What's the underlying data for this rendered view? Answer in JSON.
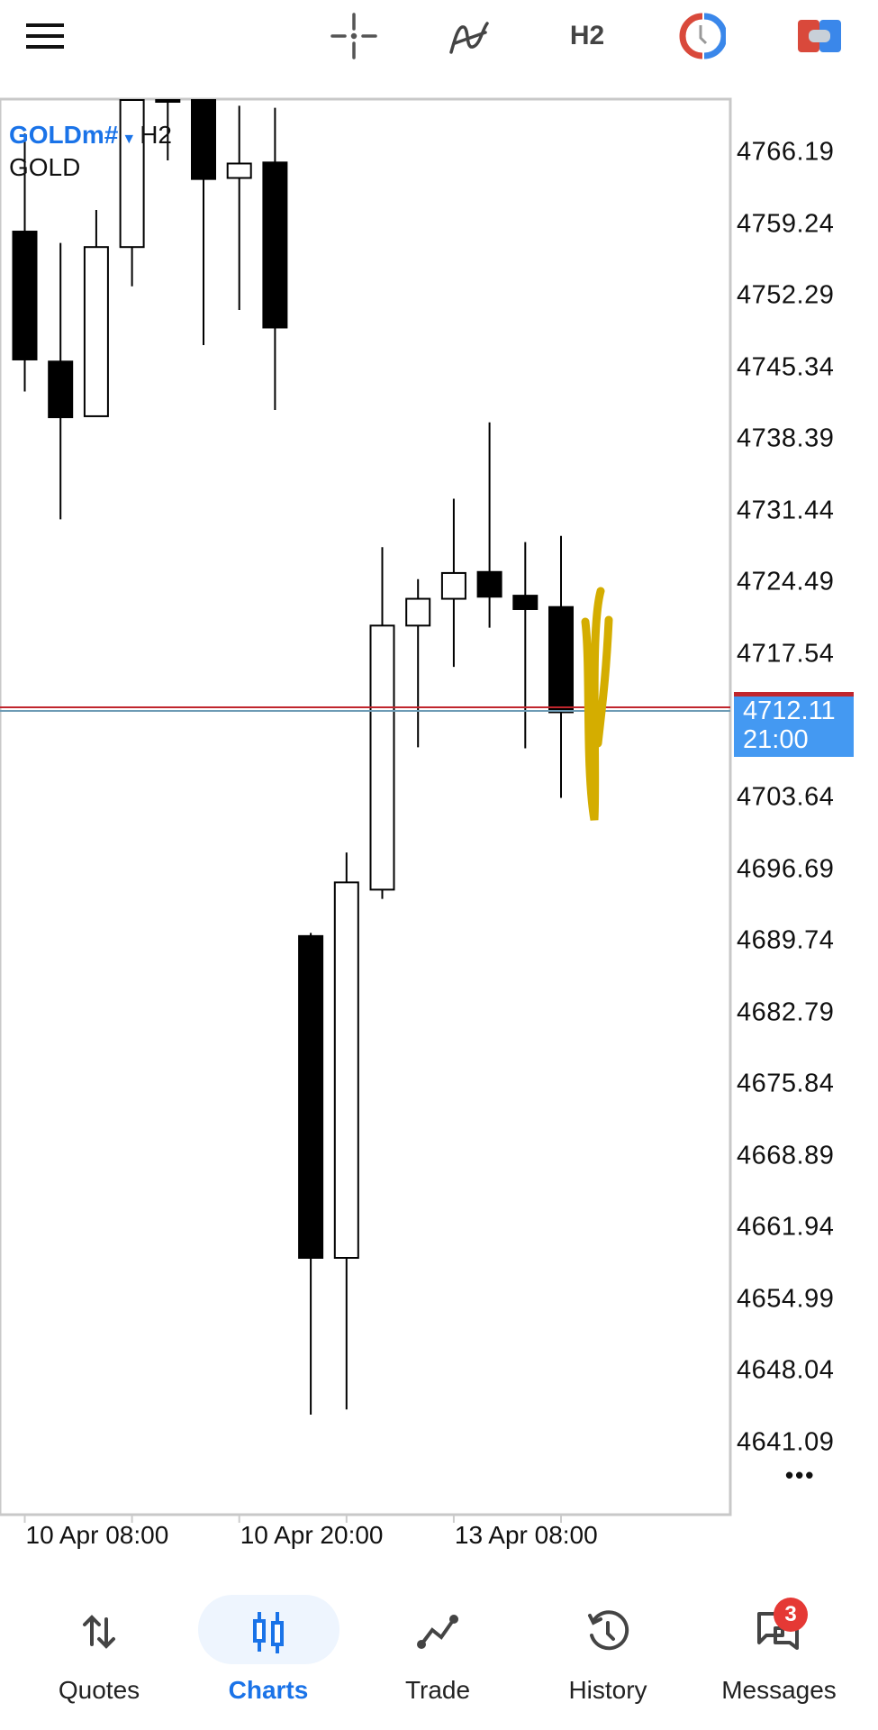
{
  "toolbar": {
    "icons": [
      "menu-icon",
      "crosshair-icon",
      "indicators-icon",
      "clock-icon",
      "one-click-trading-icon"
    ],
    "timeframe": "H2"
  },
  "legend": {
    "symbol": "GOLDm#",
    "timeframe": "H2",
    "description": "GOLD"
  },
  "colors": {
    "accent": "#1a73e8",
    "price_label_bg": "#4499f2",
    "ask_line": "#c0262d",
    "bid_line": "#6d9bb5",
    "annotation": "#d4ad00",
    "badge": "#e53935"
  },
  "chart_data": {
    "type": "candlestick",
    "symbol": "GOLDm#",
    "timeframe": "H2",
    "y_ticks": [
      "4766.19",
      "4759.24",
      "4752.29",
      "4745.34",
      "4738.39",
      "4731.44",
      "4724.49",
      "4717.54",
      "4703.64",
      "4696.69",
      "4689.74",
      "4682.79",
      "4675.84",
      "4668.89",
      "4661.94",
      "4654.99",
      "4648.04",
      "4641.09"
    ],
    "x_ticks": [
      {
        "label": "10 Apr 08:00",
        "candle": 0
      },
      {
        "label": "10 Apr 20:00",
        "candle": 6
      },
      {
        "label": "13 Apr 08:00",
        "candle": 12
      }
    ],
    "candles": [
      {
        "o": 4758.5,
        "h": 4768.0,
        "l": 4743.0,
        "c": 4746.1
      },
      {
        "o": 4745.9,
        "h": 4757.4,
        "l": 4730.6,
        "c": 4740.5
      },
      {
        "o": 4740.6,
        "h": 4760.6,
        "l": 4740.6,
        "c": 4757.0
      },
      {
        "o": 4757.0,
        "h": 4775.0,
        "l": 4753.2,
        "c": 4772.0
      },
      {
        "o": 4778.0,
        "h": 4780.0,
        "l": 4765.4,
        "c": 4774.0
      },
      {
        "o": 4775.0,
        "h": 4776.0,
        "l": 4747.5,
        "c": 4763.6
      },
      {
        "o": 4763.7,
        "h": 4770.7,
        "l": 4750.9,
        "c": 4765.1
      },
      {
        "o": 4765.2,
        "h": 4770.5,
        "l": 4741.2,
        "c": 4749.2
      },
      {
        "o": 4690.2,
        "h": 4690.5,
        "l": 4643.8,
        "c": 4659.0
      },
      {
        "o": 4659.0,
        "h": 4698.3,
        "l": 4644.3,
        "c": 4695.4
      },
      {
        "o": 4694.7,
        "h": 4727.9,
        "l": 4693.8,
        "c": 4720.3
      },
      {
        "o": 4720.3,
        "h": 4724.8,
        "l": 4708.5,
        "c": 4722.9
      },
      {
        "o": 4722.9,
        "h": 4732.6,
        "l": 4716.3,
        "c": 4725.4
      },
      {
        "o": 4725.5,
        "h": 4740.0,
        "l": 4720.1,
        "c": 4723.1
      },
      {
        "o": 4723.2,
        "h": 4728.4,
        "l": 4708.4,
        "c": 4721.9
      },
      {
        "o": 4722.1,
        "h": 4729.0,
        "l": 4703.6,
        "c": 4711.9
      }
    ],
    "current_price": "4712.11",
    "current_price_value": 4712.11,
    "countdown": "21:00",
    "grid": false
  },
  "more_label": "•••",
  "nav": [
    {
      "label": "Quotes",
      "icon": "quotes-icon",
      "active": false
    },
    {
      "label": "Charts",
      "icon": "charts-icon",
      "active": true
    },
    {
      "label": "Trade",
      "icon": "trade-icon",
      "active": false
    },
    {
      "label": "History",
      "icon": "history-icon",
      "active": false
    },
    {
      "label": "Messages",
      "icon": "messages-icon",
      "active": false,
      "badge": "3"
    }
  ]
}
